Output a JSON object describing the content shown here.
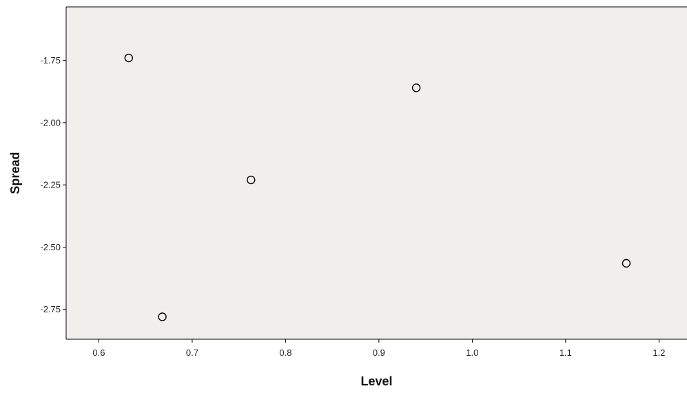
{
  "chart_data": {
    "type": "scatter",
    "title": "",
    "xlabel": "Level",
    "ylabel": "Spread",
    "xlim": [
      0.565,
      1.23
    ],
    "ylim": [
      -2.87,
      -1.535
    ],
    "x_ticks": [
      0.6,
      0.7,
      0.8,
      0.9,
      1.0,
      1.1,
      1.2
    ],
    "x_tick_labels": [
      "0.6",
      "0.7",
      "0.8",
      "0.9",
      "1.0",
      "1.1",
      "1.2"
    ],
    "y_ticks": [
      -1.75,
      -2.0,
      -2.25,
      -2.5,
      -2.75
    ],
    "y_tick_labels": [
      "-1.75",
      "-2.00",
      "-2.25",
      "-2.50",
      "-2.75"
    ],
    "grid": false,
    "points": [
      {
        "x": 0.632,
        "y": -1.74
      },
      {
        "x": 0.668,
        "y": -2.78
      },
      {
        "x": 0.763,
        "y": -2.23
      },
      {
        "x": 0.94,
        "y": -1.86
      },
      {
        "x": 1.165,
        "y": -2.565
      }
    ],
    "colors": {
      "plot_background": "#f0efec",
      "axis": "#000000",
      "marker_stroke": "#000000",
      "marker_fill": "#f0efec"
    }
  }
}
